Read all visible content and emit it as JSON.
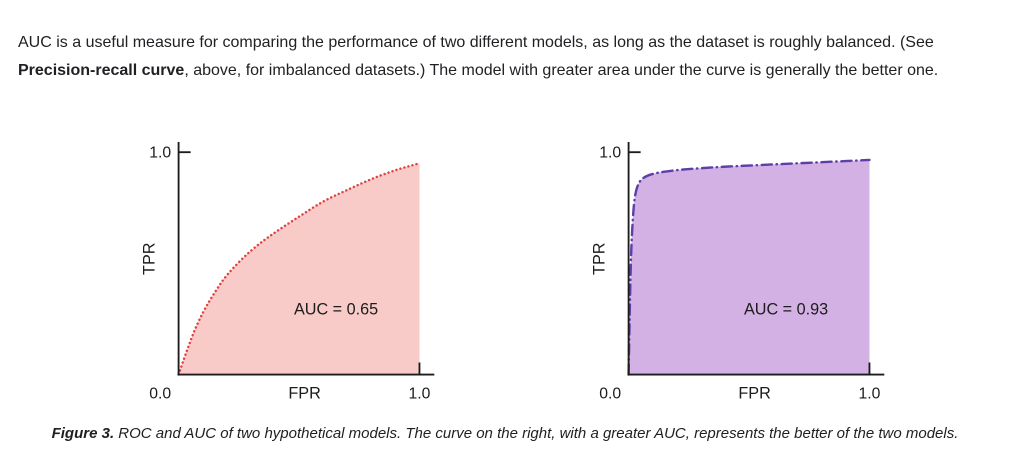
{
  "intro": {
    "before_bold": "AUC is a useful measure for comparing the performance of two different models, as long as the dataset is roughly balanced. (See ",
    "bold": "Precision-recall curve",
    "after_bold": ", above, for imbalanced datasets.) The model with greater area under the curve is generally the better one."
  },
  "caption": {
    "label": "Figure 3.",
    "text": " ROC and AUC of two hypothetical models. The curve on the right, with a greater AUC, represents the better of the two models."
  },
  "chart_data": [
    {
      "type": "line",
      "name": "roc-curve-model-left",
      "xlabel": "FPR",
      "ylabel": "TPR",
      "origin_label": "0.0",
      "x_max_label": "1.0",
      "y_max_label": "1.0",
      "xlim": [
        0,
        1
      ],
      "ylim": [
        0,
        1
      ],
      "annotation": "AUC = 0.65",
      "auc": 0.65,
      "line_style": "dotted",
      "line_color": "#e0413f",
      "fill_color": "#f9cbc8",
      "grid": false,
      "legend": "none",
      "series": [
        {
          "name": "ROC (AUC = 0.65)",
          "x": [
            0,
            0.05,
            0.1,
            0.15,
            0.2,
            0.3,
            0.4,
            0.5,
            0.6,
            0.7,
            0.8,
            0.9,
            1.0
          ],
          "y": [
            0,
            0.16,
            0.28,
            0.37,
            0.45,
            0.56,
            0.64,
            0.71,
            0.78,
            0.83,
            0.88,
            0.92,
            0.95
          ]
        }
      ]
    },
    {
      "type": "line",
      "name": "roc-curve-model-right",
      "xlabel": "FPR",
      "ylabel": "TPR",
      "origin_label": "0.0",
      "x_max_label": "1.0",
      "y_max_label": "1.0",
      "xlim": [
        0,
        1
      ],
      "ylim": [
        0,
        1
      ],
      "annotation": "AUC = 0.93",
      "auc": 0.93,
      "line_style": "dashdot",
      "line_color": "#5d3fa8",
      "fill_color": "#d3b1e4",
      "grid": false,
      "legend": "none",
      "series": [
        {
          "name": "ROC (AUC = 0.93)",
          "x": [
            0,
            0.005,
            0.01,
            0.02,
            0.03,
            0.05,
            0.1,
            0.2,
            0.3,
            0.4,
            0.6,
            0.8,
            1.0
          ],
          "y": [
            0,
            0.3,
            0.55,
            0.75,
            0.83,
            0.88,
            0.905,
            0.92,
            0.928,
            0.935,
            0.945,
            0.955,
            0.965
          ]
        }
      ]
    }
  ]
}
